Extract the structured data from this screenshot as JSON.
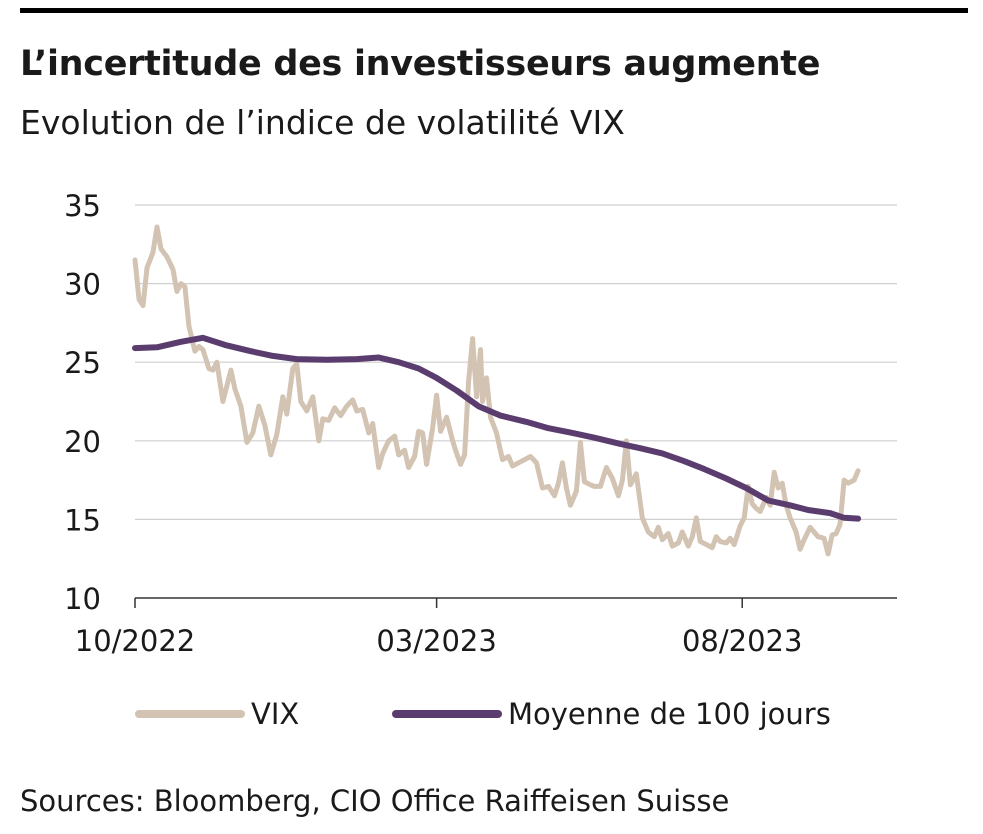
{
  "header": {
    "title": "L’incertitude des investisseurs augmente",
    "subtitle": "Evolution de l’indice de volatilité VIX"
  },
  "footer": {
    "source": "Sources: Bloomberg, CIO Office Raiffeisen Suisse"
  },
  "colors": {
    "vix": "#d3c3b3",
    "ma100": "#5a3d6e",
    "grid": "#cfcfcf",
    "axis": "#333333"
  },
  "chart_data": {
    "type": "line",
    "title": "L’incertitude des investisseurs augmente",
    "subtitle": "Evolution de l’indice de volatilité VIX",
    "xlabel": "",
    "ylabel": "",
    "ylim": [
      10,
      35
    ],
    "yticks": [
      10,
      15,
      20,
      25,
      30,
      35
    ],
    "xlim": [
      "2022-10-01",
      "2023-10-18"
    ],
    "xticks": [
      {
        "date": "2022-10-01",
        "label": "10/2022"
      },
      {
        "date": "2023-03-01",
        "label": "03/2023"
      },
      {
        "date": "2023-08-01",
        "label": "08/2023"
      }
    ],
    "grid": "horizontal",
    "legend_position": "bottom",
    "series": [
      {
        "name": "VIX",
        "color": "#d3c3b3",
        "points": [
          [
            "2022-10-01",
            31.5
          ],
          [
            "2022-10-03",
            29.0
          ],
          [
            "2022-10-05",
            28.6
          ],
          [
            "2022-10-07",
            31.0
          ],
          [
            "2022-10-10",
            32.0
          ],
          [
            "2022-10-12",
            33.6
          ],
          [
            "2022-10-14",
            32.2
          ],
          [
            "2022-10-17",
            31.7
          ],
          [
            "2022-10-20",
            30.9
          ],
          [
            "2022-10-22",
            29.5
          ],
          [
            "2022-10-24",
            30.0
          ],
          [
            "2022-10-26",
            29.8
          ],
          [
            "2022-10-28",
            27.3
          ],
          [
            "2022-10-31",
            25.7
          ],
          [
            "2022-11-02",
            26.0
          ],
          [
            "2022-11-04",
            25.8
          ],
          [
            "2022-11-07",
            24.6
          ],
          [
            "2022-11-09",
            24.5
          ],
          [
            "2022-11-11",
            25.0
          ],
          [
            "2022-11-14",
            22.5
          ],
          [
            "2022-11-16",
            23.5
          ],
          [
            "2022-11-18",
            24.5
          ],
          [
            "2022-11-20",
            23.3
          ],
          [
            "2022-11-23",
            22.2
          ],
          [
            "2022-11-26",
            19.9
          ],
          [
            "2022-11-29",
            20.5
          ],
          [
            "2022-12-02",
            22.2
          ],
          [
            "2022-12-05",
            21.0
          ],
          [
            "2022-12-08",
            19.1
          ],
          [
            "2022-12-11",
            20.4
          ],
          [
            "2022-12-14",
            22.8
          ],
          [
            "2022-12-16",
            21.7
          ],
          [
            "2022-12-19",
            24.6
          ],
          [
            "2022-12-21",
            24.9
          ],
          [
            "2022-12-23",
            22.5
          ],
          [
            "2022-12-26",
            21.9
          ],
          [
            "2022-12-29",
            22.8
          ],
          [
            "2023-01-01",
            20.0
          ],
          [
            "2023-01-03",
            21.4
          ],
          [
            "2023-01-06",
            21.3
          ],
          [
            "2023-01-09",
            22.1
          ],
          [
            "2023-01-12",
            21.6
          ],
          [
            "2023-01-15",
            22.2
          ],
          [
            "2023-01-18",
            22.6
          ],
          [
            "2023-01-20",
            21.9
          ],
          [
            "2023-01-23",
            22.0
          ],
          [
            "2023-01-26",
            20.5
          ],
          [
            "2023-01-28",
            21.1
          ],
          [
            "2023-01-31",
            18.3
          ],
          [
            "2023-02-02",
            19.2
          ],
          [
            "2023-02-05",
            20.0
          ],
          [
            "2023-02-08",
            20.3
          ],
          [
            "2023-02-10",
            19.1
          ],
          [
            "2023-02-13",
            19.4
          ],
          [
            "2023-02-15",
            18.3
          ],
          [
            "2023-02-18",
            19.0
          ],
          [
            "2023-02-20",
            20.6
          ],
          [
            "2023-02-22",
            20.5
          ],
          [
            "2023-02-24",
            18.5
          ],
          [
            "2023-02-27",
            20.8
          ],
          [
            "2023-03-01",
            22.9
          ],
          [
            "2023-03-03",
            20.6
          ],
          [
            "2023-03-06",
            21.5
          ],
          [
            "2023-03-09",
            20.0
          ],
          [
            "2023-03-11",
            19.2
          ],
          [
            "2023-03-13",
            18.5
          ],
          [
            "2023-03-15",
            19.1
          ],
          [
            "2023-03-17",
            23.8
          ],
          [
            "2023-03-19",
            26.5
          ],
          [
            "2023-03-21",
            22.8
          ],
          [
            "2023-03-23",
            25.8
          ],
          [
            "2023-03-24",
            22.5
          ],
          [
            "2023-03-26",
            24.0
          ],
          [
            "2023-03-28",
            21.5
          ],
          [
            "2023-03-31",
            20.5
          ],
          [
            "2023-04-03",
            18.8
          ],
          [
            "2023-04-06",
            19.0
          ],
          [
            "2023-04-08",
            18.4
          ],
          [
            "2023-04-11",
            18.6
          ],
          [
            "2023-04-14",
            18.8
          ],
          [
            "2023-04-17",
            19.0
          ],
          [
            "2023-04-20",
            18.6
          ],
          [
            "2023-04-23",
            17.0
          ],
          [
            "2023-04-26",
            17.1
          ],
          [
            "2023-04-29",
            16.5
          ],
          [
            "2023-05-01",
            17.3
          ],
          [
            "2023-05-03",
            18.6
          ],
          [
            "2023-05-05",
            17.0
          ],
          [
            "2023-05-07",
            15.9
          ],
          [
            "2023-05-10",
            16.8
          ],
          [
            "2023-05-12",
            19.9
          ],
          [
            "2023-05-14",
            17.4
          ],
          [
            "2023-05-17",
            17.2
          ],
          [
            "2023-05-19",
            17.1
          ],
          [
            "2023-05-22",
            17.1
          ],
          [
            "2023-05-25",
            18.3
          ],
          [
            "2023-05-28",
            17.6
          ],
          [
            "2023-05-31",
            16.5
          ],
          [
            "2023-06-02",
            17.5
          ],
          [
            "2023-06-04",
            20.0
          ],
          [
            "2023-06-06",
            17.2
          ],
          [
            "2023-06-09",
            17.9
          ],
          [
            "2023-06-12",
            15.1
          ],
          [
            "2023-06-15",
            14.2
          ],
          [
            "2023-06-18",
            13.9
          ],
          [
            "2023-06-20",
            14.5
          ],
          [
            "2023-06-22",
            13.7
          ],
          [
            "2023-06-25",
            14.1
          ],
          [
            "2023-06-27",
            13.3
          ],
          [
            "2023-06-30",
            13.5
          ],
          [
            "2023-07-02",
            14.2
          ],
          [
            "2023-07-05",
            13.3
          ],
          [
            "2023-07-07",
            13.9
          ],
          [
            "2023-07-09",
            15.1
          ],
          [
            "2023-07-11",
            13.6
          ],
          [
            "2023-07-14",
            13.4
          ],
          [
            "2023-07-17",
            13.2
          ],
          [
            "2023-07-19",
            13.9
          ],
          [
            "2023-07-21",
            13.6
          ],
          [
            "2023-07-24",
            13.5
          ],
          [
            "2023-07-26",
            13.8
          ],
          [
            "2023-07-28",
            13.4
          ],
          [
            "2023-07-31",
            14.6
          ],
          [
            "2023-08-02",
            15.1
          ],
          [
            "2023-08-04",
            17.1
          ],
          [
            "2023-08-06",
            16.0
          ],
          [
            "2023-08-08",
            15.7
          ],
          [
            "2023-08-10",
            15.5
          ],
          [
            "2023-08-13",
            16.4
          ],
          [
            "2023-08-15",
            15.9
          ],
          [
            "2023-08-17",
            18.0
          ],
          [
            "2023-08-19",
            17.0
          ],
          [
            "2023-08-21",
            17.3
          ],
          [
            "2023-08-23",
            15.9
          ],
          [
            "2023-08-25",
            15.1
          ],
          [
            "2023-08-28",
            14.2
          ],
          [
            "2023-08-30",
            13.1
          ],
          [
            "2023-09-01",
            13.7
          ],
          [
            "2023-09-04",
            14.5
          ],
          [
            "2023-09-06",
            14.2
          ],
          [
            "2023-09-08",
            13.9
          ],
          [
            "2023-09-11",
            13.8
          ],
          [
            "2023-09-13",
            12.8
          ],
          [
            "2023-09-15",
            14.0
          ],
          [
            "2023-09-17",
            14.1
          ],
          [
            "2023-09-19",
            14.7
          ],
          [
            "2023-09-21",
            17.5
          ],
          [
            "2023-09-23",
            17.3
          ],
          [
            "2023-09-26",
            17.5
          ],
          [
            "2023-09-28",
            18.1
          ]
        ]
      },
      {
        "name": "Moyenne de 100 jours",
        "color": "#5a3d6e",
        "points": [
          [
            "2022-10-01",
            25.9
          ],
          [
            "2022-10-12",
            25.95
          ],
          [
            "2022-10-24",
            26.3
          ],
          [
            "2022-11-04",
            26.55
          ],
          [
            "2022-11-15",
            26.1
          ],
          [
            "2022-11-28",
            25.7
          ],
          [
            "2022-12-09",
            25.4
          ],
          [
            "2022-12-21",
            25.2
          ],
          [
            "2023-01-05",
            25.15
          ],
          [
            "2023-01-20",
            25.2
          ],
          [
            "2023-01-31",
            25.3
          ],
          [
            "2023-02-10",
            25.0
          ],
          [
            "2023-02-20",
            24.6
          ],
          [
            "2023-03-01",
            24.0
          ],
          [
            "2023-03-11",
            23.2
          ],
          [
            "2023-03-22",
            22.2
          ],
          [
            "2023-04-02",
            21.6
          ],
          [
            "2023-04-15",
            21.2
          ],
          [
            "2023-04-26",
            20.8
          ],
          [
            "2023-05-08",
            20.5
          ],
          [
            "2023-05-19",
            20.2
          ],
          [
            "2023-06-01",
            19.8
          ],
          [
            "2023-06-12",
            19.5
          ],
          [
            "2023-06-22",
            19.2
          ],
          [
            "2023-07-03",
            18.7
          ],
          [
            "2023-07-13",
            18.2
          ],
          [
            "2023-07-24",
            17.6
          ],
          [
            "2023-08-03",
            17.0
          ],
          [
            "2023-08-14",
            16.2
          ],
          [
            "2023-08-25",
            15.9
          ],
          [
            "2023-09-03",
            15.6
          ],
          [
            "2023-09-14",
            15.4
          ],
          [
            "2023-09-21",
            15.1
          ],
          [
            "2023-09-28",
            15.05
          ]
        ]
      }
    ]
  }
}
